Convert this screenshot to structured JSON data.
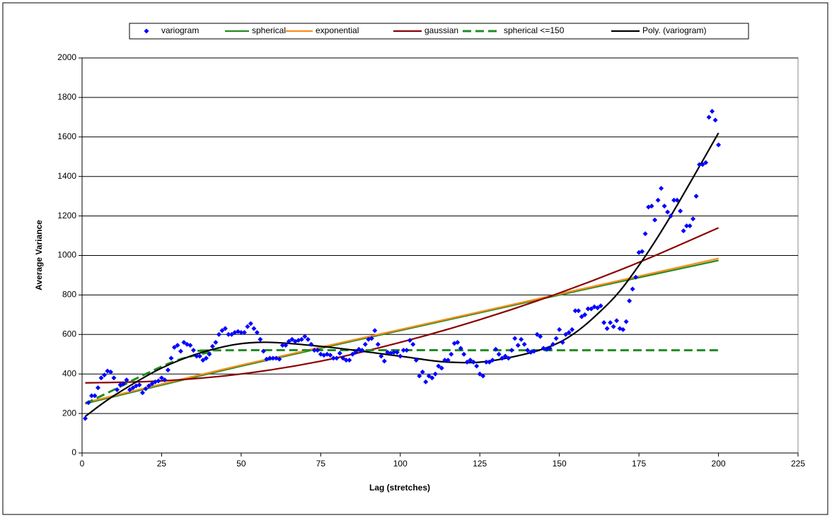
{
  "chart_data": {
    "type": "scatter-line",
    "xlabel": "Lag (stretches)",
    "ylabel": "Average Variance",
    "xlim": [
      0,
      225
    ],
    "xticks": [
      0,
      25,
      50,
      75,
      100,
      125,
      150,
      175,
      200,
      225
    ],
    "ylim": [
      0,
      2000
    ],
    "yticks": [
      0,
      200,
      400,
      600,
      800,
      1000,
      1200,
      1400,
      1600,
      1800,
      2000
    ],
    "grid": true,
    "legend": "top",
    "series": [
      {
        "name": "variogram",
        "color": "#0000ff",
        "marker": "diamond",
        "x": [
          1,
          2,
          3,
          4,
          5,
          6,
          7,
          8,
          9,
          10,
          11,
          12,
          13,
          14,
          15,
          16,
          17,
          18,
          19,
          20,
          21,
          22,
          23,
          24,
          25,
          26,
          27,
          28,
          29,
          30,
          31,
          32,
          33,
          34,
          35,
          36,
          37,
          38,
          39,
          40,
          41,
          42,
          43,
          44,
          45,
          46,
          47,
          48,
          49,
          50,
          51,
          52,
          53,
          54,
          55,
          56,
          57,
          58,
          59,
          60,
          61,
          62,
          63,
          64,
          65,
          66,
          67,
          68,
          69,
          70,
          71,
          72,
          73,
          74,
          75,
          76,
          77,
          78,
          79,
          80,
          81,
          82,
          83,
          84,
          85,
          86,
          87,
          88,
          89,
          90,
          91,
          92,
          93,
          94,
          95,
          96,
          97,
          98,
          99,
          100,
          101,
          102,
          103,
          104,
          105,
          106,
          107,
          108,
          109,
          110,
          111,
          112,
          113,
          114,
          115,
          116,
          117,
          118,
          119,
          120,
          121,
          122,
          123,
          124,
          125,
          126,
          127,
          128,
          129,
          130,
          131,
          132,
          133,
          134,
          135,
          136,
          137,
          138,
          139,
          140,
          141,
          142,
          143,
          144,
          145,
          146,
          147,
          148,
          149,
          150,
          151,
          152,
          153,
          154,
          155,
          156,
          157,
          158,
          159,
          160,
          161,
          162,
          163,
          164,
          165,
          166,
          167,
          168,
          169,
          170,
          171,
          172,
          173,
          174,
          175,
          176,
          177,
          178,
          179,
          180,
          181,
          182,
          183,
          184,
          185,
          186,
          187,
          188,
          189,
          190,
          191,
          192,
          193,
          194,
          195,
          196,
          197,
          198,
          199,
          200
        ],
        "values": [
          175,
          255,
          290,
          290,
          330,
          380,
          395,
          415,
          410,
          380,
          320,
          345,
          350,
          370,
          320,
          330,
          340,
          345,
          305,
          325,
          340,
          350,
          360,
          365,
          380,
          370,
          420,
          480,
          535,
          545,
          515,
          560,
          550,
          545,
          520,
          490,
          490,
          470,
          480,
          500,
          540,
          560,
          600,
          620,
          630,
          600,
          600,
          610,
          615,
          610,
          610,
          640,
          655,
          630,
          610,
          575,
          515,
          475,
          480,
          480,
          480,
          475,
          545,
          545,
          565,
          575,
          565,
          570,
          575,
          590,
          575,
          550,
          520,
          520,
          500,
          495,
          500,
          495,
          480,
          480,
          505,
          480,
          470,
          470,
          500,
          510,
          525,
          520,
          550,
          575,
          580,
          620,
          550,
          490,
          465,
          510,
          505,
          510,
          510,
          490,
          520,
          520,
          570,
          550,
          470,
          390,
          410,
          360,
          390,
          380,
          400,
          440,
          430,
          470,
          470,
          500,
          555,
          560,
          530,
          500,
          460,
          470,
          460,
          440,
          400,
          390,
          460,
          460,
          470,
          525,
          500,
          480,
          490,
          480,
          520,
          580,
          545,
          575,
          550,
          520,
          510,
          515,
          600,
          590,
          530,
          525,
          530,
          550,
          580,
          625,
          560,
          600,
          610,
          625,
          720,
          720,
          690,
          700,
          730,
          730,
          740,
          735,
          745,
          660,
          630,
          660,
          640,
          670,
          630,
          625,
          665,
          770,
          830,
          890,
          1015,
          1020,
          1110,
          1245,
          1250,
          1180,
          1280,
          1340,
          1250,
          1220,
          1200,
          1280,
          1280,
          1225,
          1125,
          1150,
          1150,
          1185,
          1300,
          1460,
          1460,
          1470,
          1700,
          1730,
          1685,
          1560
        ]
      },
      {
        "name": "spherical",
        "color": "#228b22",
        "x": [
          1,
          50,
          100,
          150,
          200
        ],
        "values": [
          250,
          440,
          620,
          800,
          975
        ]
      },
      {
        "name": "exponential",
        "color": "#ff8c1a",
        "x": [
          1,
          50,
          100,
          150,
          200
        ],
        "values": [
          255,
          445,
          625,
          805,
          985
        ]
      },
      {
        "name": "gaussian",
        "color": "#8b0000",
        "x": [
          1,
          25,
          50,
          75,
          100,
          125,
          150,
          175,
          200
        ],
        "values": [
          355,
          365,
          400,
          465,
          560,
          675,
          810,
          965,
          1140
        ]
      },
      {
        "name": "spherical <=150",
        "color": "#228b22",
        "dashed": true,
        "x": [
          1,
          10,
          20,
          30,
          40,
          45,
          150,
          200
        ],
        "values": [
          250,
          320,
          400,
          470,
          510,
          520,
          520,
          520
        ]
      },
      {
        "name": "Poly. (variogram)",
        "color": "#000000",
        "x": [
          1,
          10,
          25,
          40,
          55,
          75,
          100,
          115,
          130,
          150,
          165,
          175,
          185,
          200
        ],
        "values": [
          185,
          290,
          430,
          520,
          560,
          540,
          490,
          460,
          470,
          560,
          750,
          950,
          1200,
          1620
        ]
      }
    ]
  }
}
